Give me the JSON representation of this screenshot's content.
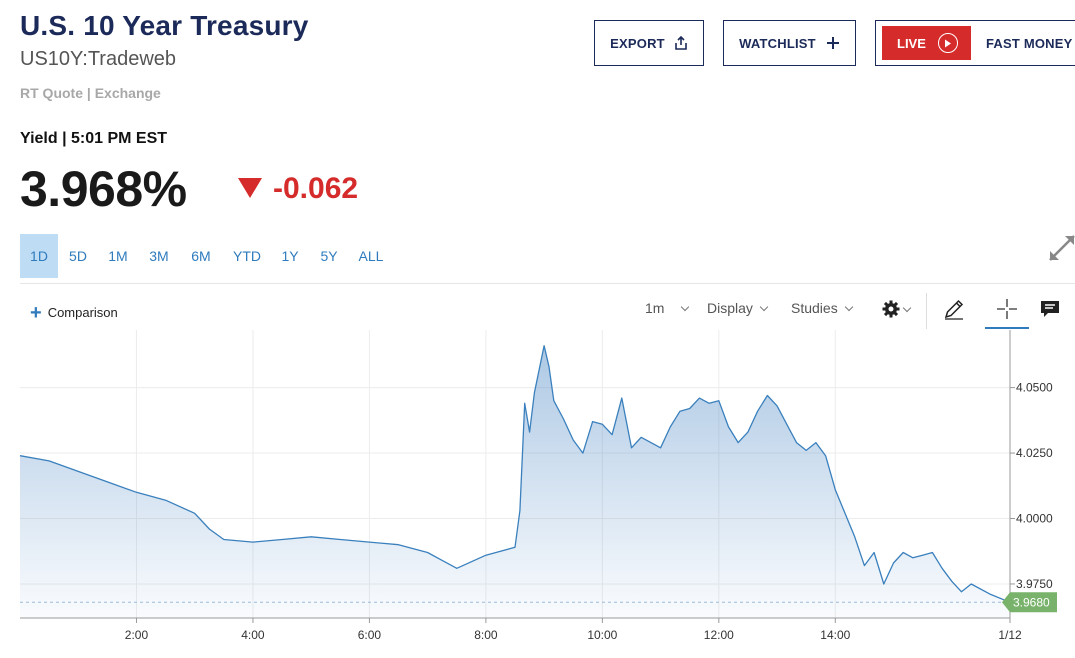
{
  "header": {
    "title": "U.S. 10 Year Treasury",
    "symbol": "US10Y:Tradeweb",
    "quote_type": "RT Quote | Exchange"
  },
  "actions": {
    "export_label": "EXPORT",
    "watchlist_label": "WATCHLIST",
    "live_label": "LIVE",
    "fast_money_label": "FAST MONEY"
  },
  "quote": {
    "yield_label": "Yield | 5:01 PM EST",
    "price": "3.968%",
    "change": "-0.062",
    "direction": "down"
  },
  "ranges": [
    "1D",
    "5D",
    "1M",
    "3M",
    "6M",
    "YTD",
    "1Y",
    "5Y",
    "ALL"
  ],
  "active_range": "1D",
  "toolbar": {
    "comparison_label": "Comparison",
    "interval_label": "1m",
    "display_label": "Display",
    "studies_label": "Studies",
    "icons": [
      "gear-icon",
      "pencil-icon",
      "crosshair-icon",
      "comment-icon"
    ]
  },
  "colors": {
    "brand_navy": "#1b2a59",
    "down_red": "#d52b2b",
    "accent_blue": "#2f7bbd",
    "line_blue": "#3a80bd",
    "last_price_green": "#79b36b"
  },
  "chart_data": {
    "type": "area",
    "title": "",
    "xlabel": "",
    "ylabel": "",
    "x_ticks": [
      "2:00",
      "4:00",
      "6:00",
      "8:00",
      "10:00",
      "12:00",
      "14:00",
      "1/12"
    ],
    "y_ticks": [
      "3.9750",
      "4.0000",
      "4.0250",
      "4.0500"
    ],
    "ylim": [
      3.962,
      4.072
    ],
    "last_value_label": "3.9680",
    "last_value": 3.968,
    "grid": true,
    "series": [
      {
        "x": [
          "00:00",
          "00:30",
          "01:00",
          "01:30",
          "02:00",
          "02:30",
          "03:00",
          "03:15",
          "03:30",
          "04:00",
          "04:30",
          "05:00",
          "05:30",
          "06:00",
          "06:30",
          "07:00",
          "07:15",
          "07:30",
          "08:00",
          "08:30",
          "08:35",
          "08:40",
          "08:45",
          "08:50",
          "09:00",
          "09:05",
          "09:10",
          "09:20",
          "09:30",
          "09:40",
          "09:50",
          "10:00",
          "10:10",
          "10:20",
          "10:30",
          "10:40",
          "10:50",
          "11:00",
          "11:10",
          "11:20",
          "11:30",
          "11:40",
          "11:50",
          "12:00",
          "12:10",
          "12:20",
          "12:30",
          "12:40",
          "12:50",
          "13:00",
          "13:10",
          "13:20",
          "13:30",
          "13:40",
          "13:50",
          "14:00",
          "14:10",
          "14:20",
          "14:30",
          "14:40",
          "14:50",
          "15:00",
          "15:10",
          "15:20",
          "15:30",
          "15:40",
          "15:50",
          "16:00",
          "16:10",
          "16:20",
          "16:40",
          "17:00"
        ],
        "y": [
          4.024,
          4.022,
          4.018,
          4.014,
          4.01,
          4.007,
          4.002,
          3.996,
          3.992,
          3.991,
          3.992,
          3.993,
          3.992,
          3.991,
          3.99,
          3.987,
          3.984,
          3.981,
          3.986,
          3.989,
          4.003,
          4.044,
          4.033,
          4.048,
          4.066,
          4.058,
          4.045,
          4.038,
          4.03,
          4.025,
          4.037,
          4.036,
          4.032,
          4.046,
          4.027,
          4.031,
          4.029,
          4.027,
          4.035,
          4.041,
          4.042,
          4.046,
          4.044,
          4.045,
          4.035,
          4.029,
          4.033,
          4.041,
          4.047,
          4.043,
          4.036,
          4.029,
          4.026,
          4.029,
          4.024,
          4.011,
          4.002,
          3.993,
          3.982,
          3.987,
          3.975,
          3.983,
          3.987,
          3.985,
          3.986,
          3.987,
          3.981,
          3.976,
          3.972,
          3.975,
          3.971,
          3.968
        ]
      }
    ]
  }
}
